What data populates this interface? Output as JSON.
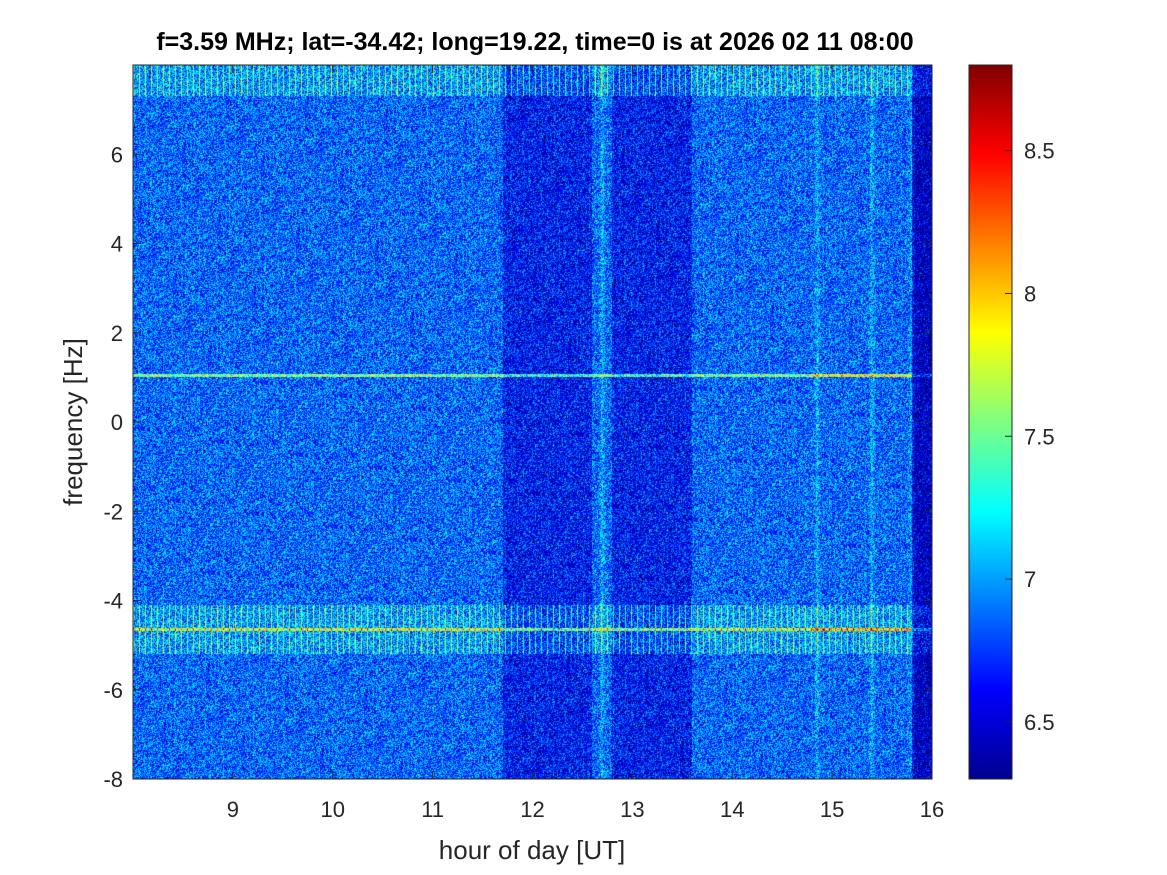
{
  "chart_data": {
    "type": "heatmap",
    "title": "f=3.59 MHz;  lat=-34.42; long=19.22, time=0 is at 2026 02 11 08:00",
    "xlabel": "hour of day [UT]",
    "ylabel": "frequency [Hz]",
    "xlim": [
      8,
      16
    ],
    "ylim": [
      -8,
      8
    ],
    "x_ticks": [
      9,
      10,
      11,
      12,
      13,
      14,
      15,
      16
    ],
    "y_ticks": [
      -8,
      -6,
      -4,
      -2,
      0,
      2,
      4,
      6
    ],
    "colorbar": {
      "colormap": "jet",
      "clim": [
        6.3,
        8.8
      ],
      "ticks": [
        6.5,
        7,
        7.5,
        8,
        8.5
      ]
    },
    "features": {
      "background_level": 6.85,
      "horizontal_lines_hz": [
        1.05,
        -4.65
      ],
      "bright_bands_hz": [
        [
          -5.2,
          -4.1
        ],
        [
          7.3,
          8.0
        ]
      ],
      "dark_period_hours": [
        [
          11.7,
          12.6
        ],
        [
          12.8,
          13.6
        ]
      ],
      "bright_vertical_hours": [
        12.7,
        14.85,
        15.4,
        15.8
      ],
      "low_level_after_hour": 15.8
    }
  }
}
